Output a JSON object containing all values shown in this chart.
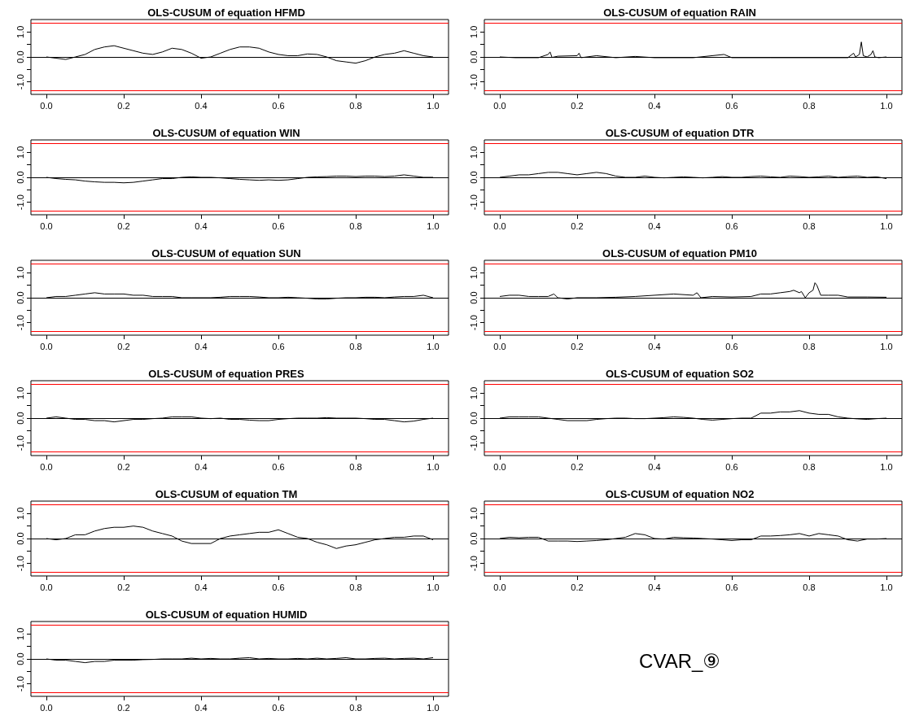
{
  "chart_data": [
    {
      "type": "line",
      "title": "OLS-CUSUM of equation HFMD",
      "marker": "none",
      "xlim": [
        -0.04,
        1.04
      ],
      "ylim": [
        -1.5,
        1.5
      ],
      "xticks": [
        {
          "value": 0,
          "label": "0.0"
        },
        {
          "value": 0.2,
          "label": "0.2"
        },
        {
          "value": 0.4,
          "label": "0.4"
        },
        {
          "value": 0.6,
          "label": "0.6"
        },
        {
          "value": 0.8,
          "label": "0.8"
        },
        {
          "value": 1,
          "label": "1.0"
        }
      ],
      "yticks": [
        {
          "value": -1,
          "label": "-1.0"
        },
        {
          "value": -0.5,
          "label": null
        },
        {
          "value": 0,
          "label": "0.0"
        },
        {
          "value": 0.5,
          "label": null
        },
        {
          "value": 1,
          "label": "1.0"
        }
      ],
      "ref_lines": [
        {
          "axis": "y",
          "value": 1.36,
          "color": "#ff0000"
        },
        {
          "axis": "y",
          "value": -1.36,
          "color": "#ff0000"
        },
        {
          "axis": "y",
          "value": 0,
          "color": "#000000"
        }
      ],
      "x": [
        0,
        0.025,
        0.05,
        0.075,
        0.1,
        0.125,
        0.15,
        0.175,
        0.2,
        0.225,
        0.25,
        0.275,
        0.3,
        0.325,
        0.35,
        0.375,
        0.4,
        0.425,
        0.45,
        0.475,
        0.5,
        0.525,
        0.55,
        0.575,
        0.6,
        0.625,
        0.65,
        0.675,
        0.7,
        0.725,
        0.75,
        0.775,
        0.8,
        0.825,
        0.85,
        0.875,
        0.9,
        0.925,
        0.95,
        0.975,
        1
      ],
      "series": [
        {
          "color": "#000000",
          "values": [
            0,
            -0.05,
            -0.1,
            0,
            0.1,
            0.3,
            0.4,
            0.45,
            0.35,
            0.25,
            0.15,
            0.1,
            0.2,
            0.35,
            0.3,
            0.15,
            -0.05,
            0,
            0.15,
            0.3,
            0.4,
            0.4,
            0.35,
            0.2,
            0.1,
            0.05,
            0.05,
            0.12,
            0.1,
            0,
            -0.15,
            -0.2,
            -0.25,
            -0.15,
            0,
            0.1,
            0.15,
            0.25,
            0.15,
            0.05,
            0
          ]
        }
      ]
    },
    {
      "type": "line",
      "title": "OLS-CUSUM of equation RAIN",
      "marker": "none",
      "xlim": [
        -0.04,
        1.04
      ],
      "ylim": [
        -1.5,
        1.5
      ],
      "xticks": [
        {
          "value": 0,
          "label": "0.0"
        },
        {
          "value": 0.2,
          "label": "0.2"
        },
        {
          "value": 0.4,
          "label": "0.4"
        },
        {
          "value": 0.6,
          "label": "0.6"
        },
        {
          "value": 0.8,
          "label": "0.8"
        },
        {
          "value": 1,
          "label": "1.0"
        }
      ],
      "yticks": [
        {
          "value": -1,
          "label": "-1.0"
        },
        {
          "value": -0.5,
          "label": null
        },
        {
          "value": 0,
          "label": "0.0"
        },
        {
          "value": 0.5,
          "label": null
        },
        {
          "value": 1,
          "label": "1.0"
        }
      ],
      "ref_lines": [
        {
          "axis": "y",
          "value": 1.36,
          "color": "#ff0000"
        },
        {
          "axis": "y",
          "value": -1.36,
          "color": "#ff0000"
        },
        {
          "axis": "y",
          "value": 0,
          "color": "#000000"
        }
      ],
      "x": [
        0,
        0.04,
        0.1,
        0.125,
        0.13,
        0.135,
        0.15,
        0.2,
        0.205,
        0.21,
        0.25,
        0.3,
        0.35,
        0.4,
        0.5,
        0.58,
        0.6,
        0.7,
        0.8,
        0.9,
        0.915,
        0.92,
        0.93,
        0.935,
        0.94,
        0.95,
        0.96,
        0.965,
        0.97,
        0.98,
        1
      ],
      "series": [
        {
          "color": "#000000",
          "values": [
            0,
            -0.03,
            -0.03,
            0.1,
            0.2,
            -0.02,
            0.03,
            0.05,
            0.15,
            -0.03,
            0.05,
            -0.03,
            0.02,
            -0.03,
            -0.03,
            0.1,
            -0.03,
            -0.03,
            -0.03,
            -0.03,
            0.15,
            0,
            0.1,
            0.6,
            0.05,
            0,
            0.1,
            0.25,
            0,
            -0.03,
            0
          ]
        }
      ]
    },
    {
      "type": "line",
      "title": "OLS-CUSUM of equation WIN",
      "marker": "none",
      "xlim": [
        -0.04,
        1.04
      ],
      "ylim": [
        -1.5,
        1.5
      ],
      "xticks": [
        {
          "value": 0,
          "label": "0.0"
        },
        {
          "value": 0.2,
          "label": "0.2"
        },
        {
          "value": 0.4,
          "label": "0.4"
        },
        {
          "value": 0.6,
          "label": "0.6"
        },
        {
          "value": 0.8,
          "label": "0.8"
        },
        {
          "value": 1,
          "label": "1.0"
        }
      ],
      "yticks": [
        {
          "value": -1,
          "label": "-1.0"
        },
        {
          "value": -0.5,
          "label": null
        },
        {
          "value": 0,
          "label": "0.0"
        },
        {
          "value": 0.5,
          "label": null
        },
        {
          "value": 1,
          "label": "1.0"
        }
      ],
      "ref_lines": [
        {
          "axis": "y",
          "value": 1.36,
          "color": "#ff0000"
        },
        {
          "axis": "y",
          "value": -1.36,
          "color": "#ff0000"
        },
        {
          "axis": "y",
          "value": 0,
          "color": "#000000"
        }
      ],
      "x": [
        0,
        0.025,
        0.05,
        0.075,
        0.1,
        0.125,
        0.15,
        0.175,
        0.2,
        0.225,
        0.25,
        0.275,
        0.3,
        0.325,
        0.35,
        0.375,
        0.4,
        0.425,
        0.45,
        0.475,
        0.5,
        0.525,
        0.55,
        0.575,
        0.6,
        0.625,
        0.65,
        0.675,
        0.7,
        0.725,
        0.75,
        0.775,
        0.8,
        0.825,
        0.85,
        0.875,
        0.9,
        0.925,
        0.95,
        0.975,
        1
      ],
      "series": [
        {
          "color": "#000000",
          "values": [
            0,
            -0.05,
            -0.08,
            -0.1,
            -0.15,
            -0.18,
            -0.2,
            -0.2,
            -0.22,
            -0.2,
            -0.15,
            -0.1,
            -0.05,
            -0.05,
            0,
            0.02,
            0,
            0,
            -0.02,
            -0.05,
            -0.08,
            -0.1,
            -0.12,
            -0.1,
            -0.12,
            -0.1,
            -0.05,
            0,
            0.02,
            0.03,
            0.05,
            0.05,
            0.03,
            0.05,
            0.05,
            0.03,
            0.05,
            0.1,
            0.05,
            0,
            0
          ]
        }
      ]
    },
    {
      "type": "line",
      "title": "OLS-CUSUM of equation DTR",
      "marker": "none",
      "xlim": [
        -0.04,
        1.04
      ],
      "ylim": [
        -1.5,
        1.5
      ],
      "xticks": [
        {
          "value": 0,
          "label": "0.0"
        },
        {
          "value": 0.2,
          "label": "0.2"
        },
        {
          "value": 0.4,
          "label": "0.4"
        },
        {
          "value": 0.6,
          "label": "0.6"
        },
        {
          "value": 0.8,
          "label": "0.8"
        },
        {
          "value": 1,
          "label": "1.0"
        }
      ],
      "yticks": [
        {
          "value": -1,
          "label": "-1.0"
        },
        {
          "value": -0.5,
          "label": null
        },
        {
          "value": 0,
          "label": "0.0"
        },
        {
          "value": 0.5,
          "label": null
        },
        {
          "value": 1,
          "label": "1.0"
        }
      ],
      "ref_lines": [
        {
          "axis": "y",
          "value": 1.36,
          "color": "#ff0000"
        },
        {
          "axis": "y",
          "value": -1.36,
          "color": "#ff0000"
        },
        {
          "axis": "y",
          "value": 0,
          "color": "#000000"
        }
      ],
      "x": [
        0,
        0.025,
        0.05,
        0.075,
        0.1,
        0.125,
        0.15,
        0.175,
        0.2,
        0.225,
        0.25,
        0.275,
        0.3,
        0.325,
        0.35,
        0.375,
        0.4,
        0.425,
        0.45,
        0.475,
        0.5,
        0.525,
        0.55,
        0.575,
        0.6,
        0.625,
        0.65,
        0.675,
        0.7,
        0.725,
        0.75,
        0.775,
        0.8,
        0.825,
        0.85,
        0.875,
        0.9,
        0.925,
        0.95,
        0.975,
        1
      ],
      "series": [
        {
          "color": "#000000",
          "values": [
            0,
            0.05,
            0.1,
            0.1,
            0.15,
            0.2,
            0.2,
            0.15,
            0.1,
            0.15,
            0.2,
            0.15,
            0.05,
            0,
            0,
            0.05,
            0,
            -0.02,
            0,
            0.02,
            0,
            -0.02,
            0,
            0.03,
            0,
            0,
            0.03,
            0.05,
            0.02,
            0,
            0.05,
            0.03,
            0,
            0.02,
            0.05,
            0,
            0.03,
            0.05,
            0,
            0.02,
            -0.05
          ]
        }
      ]
    },
    {
      "type": "line",
      "title": "OLS-CUSUM of equation SUN",
      "marker": "none",
      "xlim": [
        -0.04,
        1.04
      ],
      "ylim": [
        -1.5,
        1.5
      ],
      "xticks": [
        {
          "value": 0,
          "label": "0.0"
        },
        {
          "value": 0.2,
          "label": "0.2"
        },
        {
          "value": 0.4,
          "label": "0.4"
        },
        {
          "value": 0.6,
          "label": "0.6"
        },
        {
          "value": 0.8,
          "label": "0.8"
        },
        {
          "value": 1,
          "label": "1.0"
        }
      ],
      "yticks": [
        {
          "value": -1,
          "label": "-1.0"
        },
        {
          "value": -0.5,
          "label": null
        },
        {
          "value": 0,
          "label": "0.0"
        },
        {
          "value": 0.5,
          "label": null
        },
        {
          "value": 1,
          "label": "1.0"
        }
      ],
      "ref_lines": [
        {
          "axis": "y",
          "value": 1.36,
          "color": "#ff0000"
        },
        {
          "axis": "y",
          "value": -1.36,
          "color": "#ff0000"
        },
        {
          "axis": "y",
          "value": 0,
          "color": "#000000"
        }
      ],
      "x": [
        0,
        0.025,
        0.05,
        0.075,
        0.1,
        0.125,
        0.15,
        0.175,
        0.2,
        0.225,
        0.25,
        0.275,
        0.3,
        0.325,
        0.35,
        0.375,
        0.4,
        0.425,
        0.45,
        0.475,
        0.5,
        0.525,
        0.55,
        0.575,
        0.6,
        0.625,
        0.65,
        0.675,
        0.7,
        0.725,
        0.75,
        0.775,
        0.8,
        0.825,
        0.85,
        0.875,
        0.9,
        0.925,
        0.95,
        0.975,
        1
      ],
      "series": [
        {
          "color": "#000000",
          "values": [
            0,
            0.05,
            0.05,
            0.1,
            0.15,
            0.2,
            0.15,
            0.15,
            0.15,
            0.1,
            0.1,
            0.05,
            0.05,
            0.05,
            0,
            0,
            0,
            0,
            0.02,
            0.05,
            0.05,
            0.05,
            0.03,
            0,
            0,
            0.02,
            0,
            -0.02,
            -0.05,
            -0.05,
            -0.02,
            0,
            0,
            0.02,
            0.02,
            0,
            0.03,
            0.05,
            0.05,
            0.1,
            0
          ]
        }
      ]
    },
    {
      "type": "line",
      "title": "OLS-CUSUM of equation PM10",
      "marker": "none",
      "xlim": [
        -0.04,
        1.04
      ],
      "ylim": [
        -1.5,
        1.5
      ],
      "xticks": [
        {
          "value": 0,
          "label": "0.0"
        },
        {
          "value": 0.2,
          "label": "0.2"
        },
        {
          "value": 0.4,
          "label": "0.4"
        },
        {
          "value": 0.6,
          "label": "0.6"
        },
        {
          "value": 0.8,
          "label": "0.8"
        },
        {
          "value": 1,
          "label": "1.0"
        }
      ],
      "yticks": [
        {
          "value": -1,
          "label": "-1.0"
        },
        {
          "value": -0.5,
          "label": null
        },
        {
          "value": 0,
          "label": "0.0"
        },
        {
          "value": 0.5,
          "label": null
        },
        {
          "value": 1,
          "label": "1.0"
        }
      ],
      "ref_lines": [
        {
          "axis": "y",
          "value": 1.36,
          "color": "#ff0000"
        },
        {
          "axis": "y",
          "value": -1.36,
          "color": "#ff0000"
        },
        {
          "axis": "y",
          "value": 0,
          "color": "#000000"
        }
      ],
      "x": [
        0,
        0.025,
        0.05,
        0.075,
        0.1,
        0.125,
        0.14,
        0.15,
        0.175,
        0.2,
        0.25,
        0.3,
        0.35,
        0.4,
        0.45,
        0.5,
        0.51,
        0.52,
        0.55,
        0.6,
        0.65,
        0.675,
        0.7,
        0.725,
        0.75,
        0.76,
        0.775,
        0.78,
        0.79,
        0.8,
        0.81,
        0.815,
        0.82,
        0.83,
        0.85,
        0.875,
        0.9,
        0.95,
        1
      ],
      "series": [
        {
          "color": "#000000",
          "values": [
            0.05,
            0.1,
            0.1,
            0.05,
            0.05,
            0.05,
            0.15,
            0,
            -0.05,
            0,
            0,
            0.02,
            0.05,
            0.1,
            0.15,
            0.1,
            0.2,
            0,
            0.05,
            0.03,
            0.05,
            0.15,
            0.15,
            0.2,
            0.25,
            0.3,
            0.2,
            0.25,
            0,
            0.2,
            0.3,
            0.6,
            0.5,
            0.1,
            0.1,
            0.1,
            0.03,
            0.03,
            0.02
          ]
        }
      ]
    },
    {
      "type": "line",
      "title": "OLS-CUSUM of equation PRES",
      "marker": "none",
      "xlim": [
        -0.04,
        1.04
      ],
      "ylim": [
        -1.5,
        1.5
      ],
      "xticks": [
        {
          "value": 0,
          "label": "0.0"
        },
        {
          "value": 0.2,
          "label": "0.2"
        },
        {
          "value": 0.4,
          "label": "0.4"
        },
        {
          "value": 0.6,
          "label": "0.6"
        },
        {
          "value": 0.8,
          "label": "0.8"
        },
        {
          "value": 1,
          "label": "1.0"
        }
      ],
      "yticks": [
        {
          "value": -1,
          "label": "-1.0"
        },
        {
          "value": -0.5,
          "label": null
        },
        {
          "value": 0,
          "label": "0.0"
        },
        {
          "value": 0.5,
          "label": null
        },
        {
          "value": 1,
          "label": "1.0"
        }
      ],
      "ref_lines": [
        {
          "axis": "y",
          "value": 1.36,
          "color": "#ff0000"
        },
        {
          "axis": "y",
          "value": -1.36,
          "color": "#ff0000"
        },
        {
          "axis": "y",
          "value": 0,
          "color": "#000000"
        }
      ],
      "x": [
        0,
        0.025,
        0.05,
        0.075,
        0.1,
        0.125,
        0.15,
        0.175,
        0.2,
        0.225,
        0.25,
        0.275,
        0.3,
        0.325,
        0.35,
        0.375,
        0.4,
        0.425,
        0.45,
        0.475,
        0.5,
        0.525,
        0.55,
        0.575,
        0.6,
        0.625,
        0.65,
        0.675,
        0.7,
        0.725,
        0.75,
        0.775,
        0.8,
        0.825,
        0.85,
        0.875,
        0.9,
        0.925,
        0.95,
        0.975,
        1
      ],
      "series": [
        {
          "color": "#000000",
          "values": [
            0,
            0.05,
            0,
            -0.05,
            -0.05,
            -0.1,
            -0.1,
            -0.15,
            -0.1,
            -0.05,
            -0.05,
            -0.02,
            0,
            0.05,
            0.05,
            0.05,
            0,
            -0.02,
            0,
            -0.05,
            -0.05,
            -0.08,
            -0.1,
            -0.1,
            -0.05,
            -0.02,
            0,
            0,
            0,
            0.02,
            0,
            0,
            0,
            -0.02,
            -0.05,
            -0.05,
            -0.1,
            -0.15,
            -0.12,
            -0.05,
            0
          ]
        }
      ]
    },
    {
      "type": "line",
      "title": "OLS-CUSUM of equation SO2",
      "marker": "none",
      "xlim": [
        -0.04,
        1.04
      ],
      "ylim": [
        -1.5,
        1.5
      ],
      "xticks": [
        {
          "value": 0,
          "label": "0.0"
        },
        {
          "value": 0.2,
          "label": "0.2"
        },
        {
          "value": 0.4,
          "label": "0.4"
        },
        {
          "value": 0.6,
          "label": "0.6"
        },
        {
          "value": 0.8,
          "label": "0.8"
        },
        {
          "value": 1,
          "label": "1.0"
        }
      ],
      "yticks": [
        {
          "value": -1,
          "label": "-1.0"
        },
        {
          "value": -0.5,
          "label": null
        },
        {
          "value": 0,
          "label": "0.0"
        },
        {
          "value": 0.5,
          "label": null
        },
        {
          "value": 1,
          "label": "1.0"
        }
      ],
      "ref_lines": [
        {
          "axis": "y",
          "value": 1.36,
          "color": "#ff0000"
        },
        {
          "axis": "y",
          "value": -1.36,
          "color": "#ff0000"
        },
        {
          "axis": "y",
          "value": 0,
          "color": "#000000"
        }
      ],
      "x": [
        0,
        0.025,
        0.05,
        0.075,
        0.1,
        0.125,
        0.15,
        0.175,
        0.2,
        0.225,
        0.25,
        0.275,
        0.3,
        0.325,
        0.35,
        0.375,
        0.4,
        0.425,
        0.45,
        0.475,
        0.5,
        0.525,
        0.55,
        0.575,
        0.6,
        0.625,
        0.65,
        0.675,
        0.7,
        0.725,
        0.75,
        0.775,
        0.8,
        0.825,
        0.85,
        0.875,
        0.9,
        0.925,
        0.95,
        0.975,
        1
      ],
      "series": [
        {
          "color": "#000000",
          "values": [
            0,
            0.05,
            0.05,
            0.05,
            0.05,
            0,
            -0.05,
            -0.1,
            -0.1,
            -0.1,
            -0.05,
            -0.02,
            0,
            0,
            -0.02,
            -0.02,
            0,
            0.02,
            0.05,
            0.03,
            0,
            -0.05,
            -0.08,
            -0.05,
            -0.02,
            0,
            0,
            0.2,
            0.2,
            0.25,
            0.25,
            0.3,
            0.2,
            0.15,
            0.15,
            0.05,
            0,
            -0.03,
            -0.05,
            -0.02,
            0
          ]
        }
      ]
    },
    {
      "type": "line",
      "title": "OLS-CUSUM of equation TM",
      "marker": "none",
      "xlim": [
        -0.04,
        1.04
      ],
      "ylim": [
        -1.5,
        1.5
      ],
      "xticks": [
        {
          "value": 0,
          "label": "0.0"
        },
        {
          "value": 0.2,
          "label": "0.2"
        },
        {
          "value": 0.4,
          "label": "0.4"
        },
        {
          "value": 0.6,
          "label": "0.6"
        },
        {
          "value": 0.8,
          "label": "0.8"
        },
        {
          "value": 1,
          "label": "1.0"
        }
      ],
      "yticks": [
        {
          "value": -1,
          "label": "-1.0"
        },
        {
          "value": -0.5,
          "label": null
        },
        {
          "value": 0,
          "label": "0.0"
        },
        {
          "value": 0.5,
          "label": null
        },
        {
          "value": 1,
          "label": "1.0"
        }
      ],
      "ref_lines": [
        {
          "axis": "y",
          "value": 1.36,
          "color": "#ff0000"
        },
        {
          "axis": "y",
          "value": -1.36,
          "color": "#ff0000"
        },
        {
          "axis": "y",
          "value": 0,
          "color": "#000000"
        }
      ],
      "x": [
        0,
        0.025,
        0.05,
        0.075,
        0.1,
        0.125,
        0.15,
        0.175,
        0.2,
        0.225,
        0.25,
        0.275,
        0.3,
        0.325,
        0.35,
        0.375,
        0.4,
        0.425,
        0.45,
        0.475,
        0.5,
        0.525,
        0.55,
        0.575,
        0.6,
        0.625,
        0.65,
        0.675,
        0.7,
        0.725,
        0.75,
        0.775,
        0.8,
        0.825,
        0.85,
        0.875,
        0.9,
        0.925,
        0.95,
        0.975,
        1
      ],
      "series": [
        {
          "color": "#000000",
          "values": [
            0,
            -0.05,
            0,
            0.15,
            0.15,
            0.3,
            0.4,
            0.45,
            0.45,
            0.5,
            0.45,
            0.3,
            0.2,
            0.1,
            -0.1,
            -0.2,
            -0.2,
            -0.2,
            0,
            0.1,
            0.15,
            0.2,
            0.25,
            0.25,
            0.35,
            0.2,
            0.05,
            0,
            -0.15,
            -0.25,
            -0.4,
            -0.3,
            -0.25,
            -0.15,
            -0.05,
            0,
            0.05,
            0.05,
            0.1,
            0.1,
            -0.05
          ]
        }
      ]
    },
    {
      "type": "line",
      "title": "OLS-CUSUM of equation NO2",
      "marker": "none",
      "xlim": [
        -0.04,
        1.04
      ],
      "ylim": [
        -1.5,
        1.5
      ],
      "xticks": [
        {
          "value": 0,
          "label": "0.0"
        },
        {
          "value": 0.2,
          "label": "0.2"
        },
        {
          "value": 0.4,
          "label": "0.4"
        },
        {
          "value": 0.6,
          "label": "0.6"
        },
        {
          "value": 0.8,
          "label": "0.8"
        },
        {
          "value": 1,
          "label": "1.0"
        }
      ],
      "yticks": [
        {
          "value": -1,
          "label": "-1.0"
        },
        {
          "value": -0.5,
          "label": null
        },
        {
          "value": 0,
          "label": "0.0"
        },
        {
          "value": 0.5,
          "label": null
        },
        {
          "value": 1,
          "label": "1.0"
        }
      ],
      "ref_lines": [
        {
          "axis": "y",
          "value": 1.36,
          "color": "#ff0000"
        },
        {
          "axis": "y",
          "value": -1.36,
          "color": "#ff0000"
        },
        {
          "axis": "y",
          "value": 0,
          "color": "#000000"
        }
      ],
      "x": [
        0,
        0.025,
        0.05,
        0.075,
        0.1,
        0.125,
        0.15,
        0.175,
        0.2,
        0.225,
        0.25,
        0.275,
        0.3,
        0.325,
        0.35,
        0.375,
        0.4,
        0.425,
        0.45,
        0.475,
        0.5,
        0.525,
        0.55,
        0.575,
        0.6,
        0.625,
        0.65,
        0.675,
        0.7,
        0.725,
        0.75,
        0.775,
        0.8,
        0.825,
        0.85,
        0.875,
        0.9,
        0.925,
        0.95,
        0.975,
        1
      ],
      "series": [
        {
          "color": "#000000",
          "values": [
            0,
            0.05,
            0.03,
            0.05,
            0.05,
            -0.1,
            -0.1,
            -0.1,
            -0.12,
            -0.1,
            -0.08,
            -0.05,
            0,
            0.05,
            0.2,
            0.15,
            0,
            -0.02,
            0.05,
            0.03,
            0.02,
            0,
            -0.02,
            -0.05,
            -0.08,
            -0.05,
            -0.05,
            0.1,
            0.1,
            0.12,
            0.15,
            0.2,
            0.1,
            0.2,
            0.15,
            0.1,
            -0.05,
            -0.1,
            -0.02,
            -0.02,
            0
          ]
        }
      ]
    },
    {
      "type": "line",
      "title": "OLS-CUSUM of equation HUMID",
      "marker": "none",
      "xlim": [
        -0.04,
        1.04
      ],
      "ylim": [
        -1.5,
        1.5
      ],
      "xticks": [
        {
          "value": 0,
          "label": "0.0"
        },
        {
          "value": 0.2,
          "label": "0.2"
        },
        {
          "value": 0.4,
          "label": "0.4"
        },
        {
          "value": 0.6,
          "label": "0.6"
        },
        {
          "value": 0.8,
          "label": "0.8"
        },
        {
          "value": 1,
          "label": "1.0"
        }
      ],
      "yticks": [
        {
          "value": -1,
          "label": "-1.0"
        },
        {
          "value": -0.5,
          "label": null
        },
        {
          "value": 0,
          "label": "0.0"
        },
        {
          "value": 0.5,
          "label": null
        },
        {
          "value": 1,
          "label": "1.0"
        }
      ],
      "ref_lines": [
        {
          "axis": "y",
          "value": 1.36,
          "color": "#ff0000"
        },
        {
          "axis": "y",
          "value": -1.36,
          "color": "#ff0000"
        },
        {
          "axis": "y",
          "value": 0,
          "color": "#000000"
        }
      ],
      "x": [
        0,
        0.025,
        0.05,
        0.075,
        0.1,
        0.125,
        0.15,
        0.175,
        0.2,
        0.225,
        0.25,
        0.275,
        0.3,
        0.325,
        0.35,
        0.375,
        0.4,
        0.425,
        0.45,
        0.475,
        0.5,
        0.525,
        0.55,
        0.575,
        0.6,
        0.625,
        0.65,
        0.675,
        0.7,
        0.725,
        0.75,
        0.775,
        0.8,
        0.825,
        0.85,
        0.875,
        0.9,
        0.925,
        0.95,
        0.975,
        1
      ],
      "series": [
        {
          "color": "#000000",
          "values": [
            0,
            -0.05,
            -0.05,
            -0.1,
            -0.15,
            -0.1,
            -0.1,
            -0.05,
            -0.05,
            -0.05,
            -0.03,
            -0.02,
            0,
            0,
            0,
            0.03,
            0,
            0.02,
            0,
            0,
            0.03,
            0.05,
            0,
            0.02,
            0,
            0,
            0.02,
            0,
            0.03,
            0,
            0.02,
            0.05,
            0,
            0,
            0.02,
            0.03,
            0,
            0.02,
            0.03,
            0,
            0.05
          ]
        }
      ]
    },
    {
      "type": "other",
      "annotations": [
        "CVAR_⑨"
      ]
    }
  ]
}
